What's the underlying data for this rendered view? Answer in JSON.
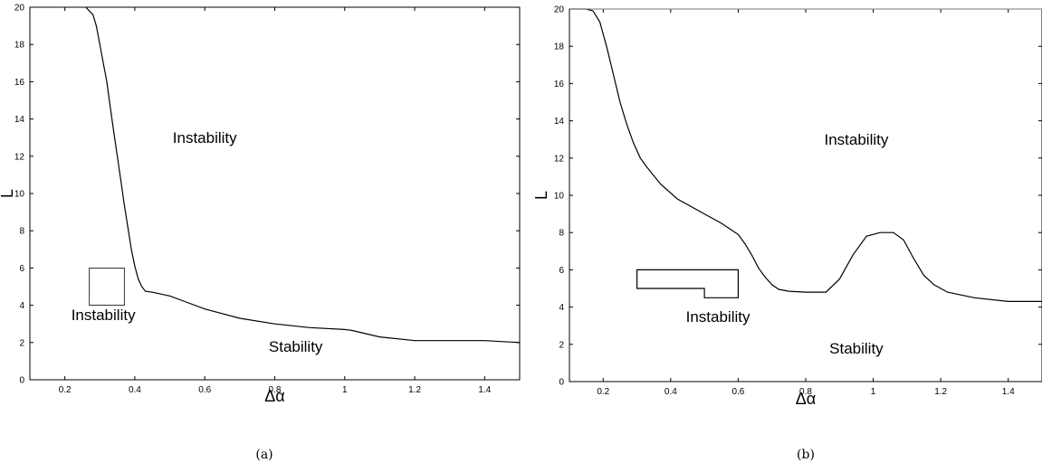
{
  "chart_data": [
    {
      "type": "line",
      "panel_label": "(a)",
      "xlabel": "Δα",
      "ylabel": "L",
      "xlim": [
        0.1,
        1.5
      ],
      "ylim": [
        0,
        20
      ],
      "xticks": [
        0.2,
        0.4,
        0.6,
        0.8,
        1,
        1.2,
        1.4
      ],
      "yticks": [
        0,
        2,
        4,
        6,
        8,
        10,
        12,
        14,
        16,
        18,
        20
      ],
      "grid": false,
      "series": [
        {
          "x": [
            0.26,
            0.28,
            0.29,
            0.3,
            0.31,
            0.32,
            0.33,
            0.34,
            0.35,
            0.36,
            0.37,
            0.38,
            0.39,
            0.4,
            0.41,
            0.42,
            0.43,
            0.45,
            0.5,
            0.55,
            0.6,
            0.7,
            0.8,
            0.9,
            1.0,
            1.02,
            1.1,
            1.2,
            1.3,
            1.4,
            1.5
          ],
          "y": [
            20,
            19.6,
            19.0,
            18.0,
            17.0,
            16.0,
            14.6,
            13.3,
            12.0,
            10.7,
            9.4,
            8.2,
            7.0,
            6.1,
            5.4,
            5.0,
            4.75,
            4.7,
            4.5,
            4.15,
            3.8,
            3.3,
            3.0,
            2.8,
            2.7,
            2.65,
            2.3,
            2.1,
            2.1,
            2.1,
            2.0
          ]
        }
      ],
      "box": {
        "x": [
          0.27,
          0.37
        ],
        "y": [
          4,
          6
        ]
      },
      "annotations": [
        {
          "text": "Instability",
          "x": 0.6,
          "y": 13
        },
        {
          "text": "Instability",
          "x": 0.31,
          "y": 3.5
        },
        {
          "text": "Stability",
          "x": 0.86,
          "y": 1.8
        }
      ]
    },
    {
      "type": "line",
      "panel_label": "(b)",
      "xlabel": "Δα",
      "ylabel": "L",
      "xlim": [
        0.1,
        1.5
      ],
      "ylim": [
        0,
        20
      ],
      "xticks": [
        0.2,
        0.4,
        0.6,
        0.8,
        1,
        1.2,
        1.4
      ],
      "yticks": [
        0,
        2,
        4,
        6,
        8,
        10,
        12,
        14,
        16,
        18,
        20
      ],
      "grid": false,
      "series": [
        {
          "x": [
            0.1,
            0.15,
            0.17,
            0.19,
            0.21,
            0.23,
            0.25,
            0.27,
            0.29,
            0.31,
            0.33,
            0.37,
            0.42,
            0.5,
            0.55,
            0.6,
            0.62,
            0.64,
            0.66,
            0.68,
            0.7,
            0.72,
            0.75,
            0.8,
            0.86,
            0.9,
            0.94,
            0.98,
            1.02,
            1.06,
            1.09,
            1.12,
            1.15,
            1.18,
            1.22,
            1.3,
            1.4,
            1.5
          ],
          "y": [
            20,
            20,
            19.9,
            19.3,
            18.0,
            16.5,
            15.0,
            13.8,
            12.8,
            12.0,
            11.5,
            10.6,
            9.8,
            9.0,
            8.5,
            7.9,
            7.4,
            6.8,
            6.1,
            5.6,
            5.2,
            4.95,
            4.85,
            4.8,
            4.8,
            5.5,
            6.8,
            7.8,
            8.0,
            8.0,
            7.6,
            6.6,
            5.7,
            5.2,
            4.8,
            4.5,
            4.3,
            4.3
          ]
        },
        {
          "x": [
            0.1,
            1.5
          ],
          "y": [
            20,
            20
          ]
        }
      ],
      "region": {
        "x": [
          0.3,
          0.6,
          0.6,
          0.5,
          0.5,
          0.3,
          0.3
        ],
        "y": [
          6,
          6,
          4.5,
          4.5,
          5,
          5,
          6
        ]
      },
      "annotations": [
        {
          "text": "Instability",
          "x": 0.95,
          "y": 13
        },
        {
          "text": "Instability",
          "x": 0.54,
          "y": 3.5
        },
        {
          "text": "Stability",
          "x": 0.95,
          "y": 1.8
        }
      ]
    }
  ]
}
